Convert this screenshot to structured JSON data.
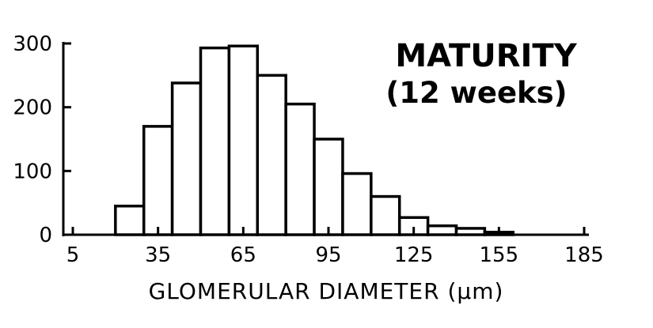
{
  "chart_data": {
    "type": "bar",
    "title": "MATURITY",
    "subtitle": "(12 weeks)",
    "xlabel": "GLOMERULAR DIAMETER (μm)",
    "ylabel": "",
    "xlim": [
      5,
      185
    ],
    "ylim": [
      0,
      300
    ],
    "x_ticks": [
      5,
      35,
      65,
      95,
      125,
      155,
      185
    ],
    "y_ticks": [
      0,
      100,
      200,
      300
    ],
    "bin_width": 10,
    "bins": [
      {
        "start": 20,
        "end": 30,
        "value": 45
      },
      {
        "start": 30,
        "end": 40,
        "value": 170
      },
      {
        "start": 40,
        "end": 50,
        "value": 238
      },
      {
        "start": 50,
        "end": 60,
        "value": 293
      },
      {
        "start": 60,
        "end": 70,
        "value": 296
      },
      {
        "start": 70,
        "end": 80,
        "value": 250
      },
      {
        "start": 80,
        "end": 90,
        "value": 205
      },
      {
        "start": 90,
        "end": 100,
        "value": 150
      },
      {
        "start": 100,
        "end": 110,
        "value": 96
      },
      {
        "start": 110,
        "end": 120,
        "value": 60
      },
      {
        "start": 120,
        "end": 130,
        "value": 27
      },
      {
        "start": 130,
        "end": 140,
        "value": 14
      },
      {
        "start": 140,
        "end": 150,
        "value": 10
      },
      {
        "start": 150,
        "end": 160,
        "value": 4
      }
    ],
    "grid": false,
    "legend": "none",
    "colors": {
      "bar_fill": "#ffffff",
      "stroke": "#000000"
    }
  }
}
